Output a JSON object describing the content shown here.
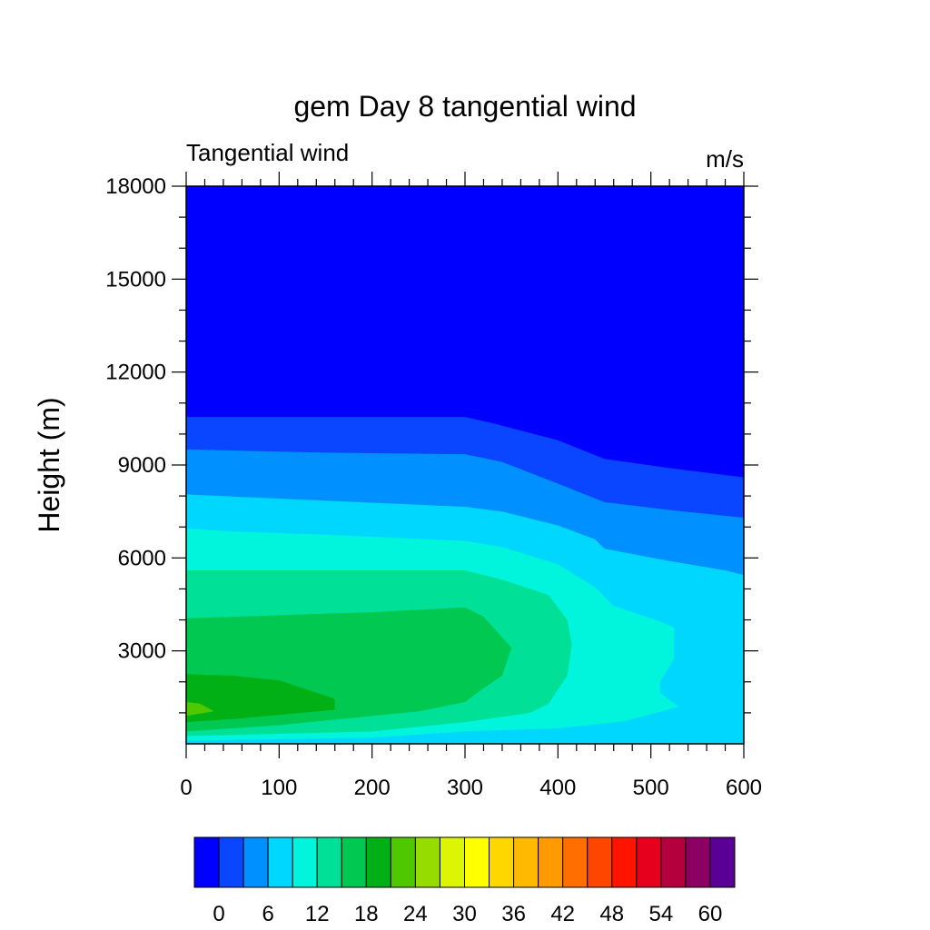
{
  "chart_data": {
    "type": "contour",
    "title": "gem Day 8 tangential wind",
    "left_string": "Tangential wind",
    "right_string": "m/s",
    "ylabel": "Height (m)",
    "xlabel": "",
    "xlim": [
      0,
      600
    ],
    "ylim": [
      0,
      18000
    ],
    "x_ticks": [
      0,
      100,
      200,
      300,
      400,
      500,
      600
    ],
    "y_ticks": [
      3000,
      6000,
      9000,
      12000,
      15000,
      18000
    ],
    "x_tick_labels": [
      "0",
      "100",
      "200",
      "300",
      "400",
      "500",
      "600"
    ],
    "y_tick_labels": [
      "3000",
      "6000",
      "9000",
      "12000",
      "15000",
      "18000"
    ],
    "levels": [
      0,
      3,
      6,
      9,
      12,
      15,
      18,
      21,
      24,
      27,
      30,
      33,
      36,
      39,
      42,
      45,
      48,
      51,
      54,
      57,
      60
    ],
    "colorbar_colors": [
      "#0000ff",
      "#0a46ff",
      "#0090ff",
      "#00d7ff",
      "#00f5dc",
      "#00e096",
      "#00c850",
      "#00b014",
      "#50c800",
      "#96dc00",
      "#dcf500",
      "#ffff00",
      "#ffd700",
      "#ffb900",
      "#ff9b00",
      "#ff6e00",
      "#ff4600",
      "#ff1400",
      "#e6001e",
      "#b4003c",
      "#8c0064",
      "#5a0096"
    ],
    "colorbar_labels": [
      "0",
      "6",
      "12",
      "18",
      "24",
      "30",
      "36",
      "42",
      "48",
      "54",
      "60"
    ],
    "filled_contours": [
      {
        "level": 0,
        "color": "#0a46ff",
        "boundary": [
          [
            0,
            10550
          ],
          [
            300,
            10550
          ],
          [
            330,
            10350
          ],
          [
            400,
            9800
          ],
          [
            450,
            9200
          ],
          [
            520,
            8900
          ],
          [
            600,
            8600
          ]
        ]
      },
      {
        "level": 3,
        "color": "#0090ff",
        "boundary": [
          [
            0,
            9500
          ],
          [
            150,
            9400
          ],
          [
            300,
            9350
          ],
          [
            340,
            9100
          ],
          [
            400,
            8400
          ],
          [
            450,
            7800
          ],
          [
            520,
            7550
          ],
          [
            600,
            7300
          ]
        ]
      },
      {
        "level": 6,
        "color": "#00d7ff",
        "boundary": [
          [
            0,
            8050
          ],
          [
            150,
            7850
          ],
          [
            300,
            7650
          ],
          [
            340,
            7500
          ],
          [
            400,
            7050
          ],
          [
            440,
            6600
          ],
          [
            450,
            6300
          ],
          [
            520,
            5900
          ],
          [
            580,
            5600
          ],
          [
            600,
            5450
          ]
        ]
      },
      {
        "level": 9,
        "color": "#00f5dc",
        "closed": [
          [
            0,
            6950
          ],
          [
            50,
            6850
          ],
          [
            150,
            6750
          ],
          [
            300,
            6550
          ],
          [
            340,
            6350
          ],
          [
            400,
            5800
          ],
          [
            440,
            5050
          ],
          [
            460,
            4450
          ],
          [
            510,
            3950
          ],
          [
            525,
            3750
          ],
          [
            525,
            2750
          ],
          [
            510,
            2000
          ],
          [
            510,
            1650
          ],
          [
            530,
            1200
          ],
          [
            475,
            750
          ],
          [
            450,
            650
          ],
          [
            400,
            500
          ],
          [
            300,
            400
          ],
          [
            200,
            200
          ],
          [
            0,
            100
          ]
        ]
      },
      {
        "level": 12,
        "color": "#00e096",
        "closed": [
          [
            0,
            5600
          ],
          [
            150,
            5600
          ],
          [
            300,
            5600
          ],
          [
            340,
            5300
          ],
          [
            390,
            4800
          ],
          [
            410,
            4000
          ],
          [
            415,
            3200
          ],
          [
            410,
            2200
          ],
          [
            390,
            1300
          ],
          [
            370,
            1000
          ],
          [
            300,
            700
          ],
          [
            200,
            400
          ],
          [
            0,
            250
          ]
        ]
      },
      {
        "level": 15,
        "color": "#00c850",
        "closed": [
          [
            0,
            4050
          ],
          [
            100,
            4150
          ],
          [
            200,
            4250
          ],
          [
            300,
            4400
          ],
          [
            320,
            4100
          ],
          [
            350,
            3100
          ],
          [
            340,
            2200
          ],
          [
            320,
            1800
          ],
          [
            300,
            1350
          ],
          [
            250,
            1050
          ],
          [
            200,
            900
          ],
          [
            100,
            600
          ],
          [
            0,
            400
          ]
        ]
      },
      {
        "level": 18,
        "color": "#00b014",
        "closed": [
          [
            0,
            2250
          ],
          [
            50,
            2200
          ],
          [
            100,
            2050
          ],
          [
            160,
            1450
          ],
          [
            160,
            1100
          ],
          [
            50,
            800
          ],
          [
            0,
            700
          ]
        ]
      },
      {
        "level": 21,
        "color": "#50c800",
        "closed": [
          [
            0,
            1350
          ],
          [
            15,
            1300
          ],
          [
            30,
            1050
          ],
          [
            0,
            900
          ]
        ]
      }
    ]
  }
}
